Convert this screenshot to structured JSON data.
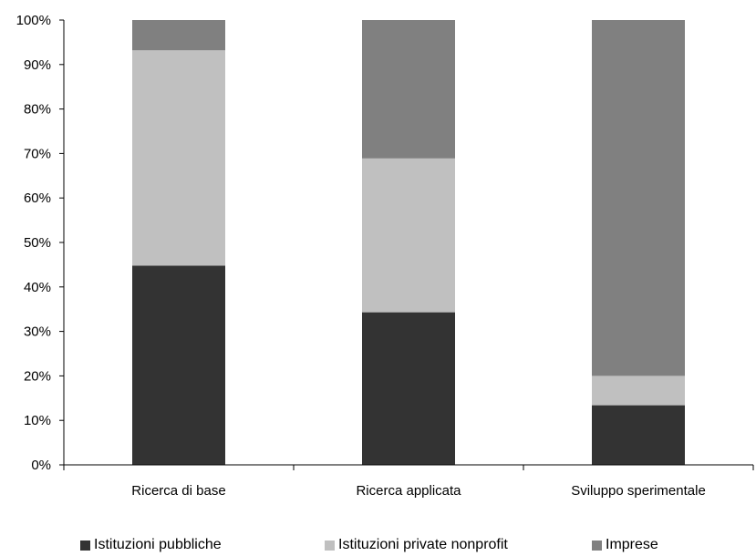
{
  "chart_data": {
    "type": "bar",
    "stacked": true,
    "categories": [
      "Ricerca di base",
      "Ricerca applicata",
      "Sviluppo sperimentale"
    ],
    "series": [
      {
        "name": "Istituzioni pubbliche",
        "color": "#333333",
        "values": [
          44.8,
          34.3,
          13.4
        ]
      },
      {
        "name": "Istituzioni private nonprofit",
        "color": "#c0c0c0",
        "values": [
          48.4,
          34.6,
          6.6
        ]
      },
      {
        "name": "Imprese",
        "color": "#808080",
        "values": [
          6.8,
          31.1,
          80.0
        ]
      }
    ],
    "y_ticks": [
      "0%",
      "10%",
      "20%",
      "30%",
      "40%",
      "50%",
      "60%",
      "70%",
      "80%",
      "90%",
      "100%"
    ],
    "ylim": [
      0,
      100
    ],
    "grid": false,
    "legend_position": "bottom"
  }
}
